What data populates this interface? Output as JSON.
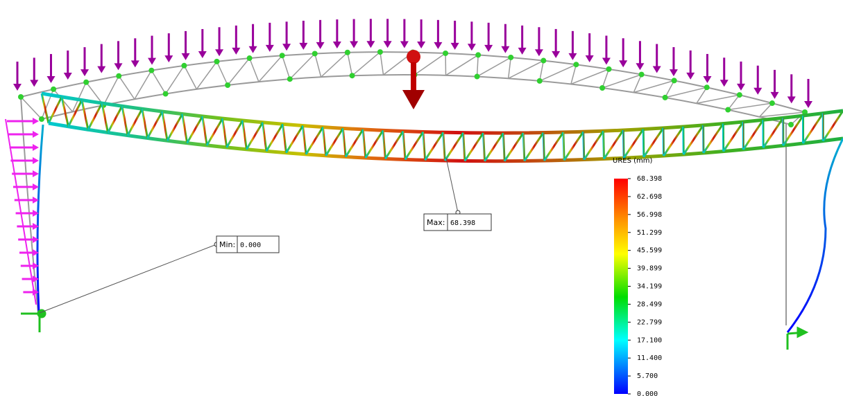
{
  "legend": {
    "title": "URES (mm)",
    "labels": [
      "68.398",
      "62.698",
      "56.998",
      "51.299",
      "45.599",
      "39.899",
      "34.199",
      "28.499",
      "22.799",
      "17.100",
      "11.400",
      "5.700",
      "0.000"
    ]
  },
  "min_probe": {
    "label": "Min:",
    "value": "0.000"
  },
  "max_probe": {
    "label": "Max:",
    "value": "68.398"
  }
}
